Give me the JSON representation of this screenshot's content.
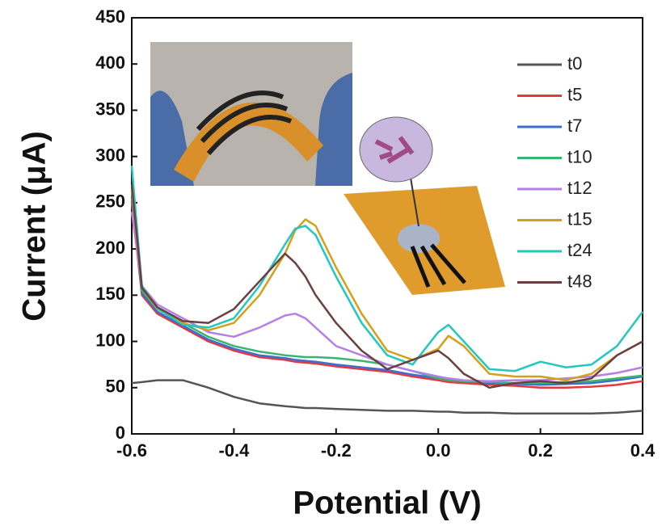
{
  "chart_data": {
    "type": "line",
    "x_label": "Potential (V)",
    "y_label": "Current (μA)",
    "x": [
      -0.6,
      -0.58,
      -0.55,
      -0.5,
      -0.45,
      -0.4,
      -0.35,
      -0.3,
      -0.28,
      -0.26,
      -0.24,
      -0.2,
      -0.15,
      -0.1,
      -0.05,
      0,
      0.02,
      0.05,
      0.1,
      0.15,
      0.2,
      0.25,
      0.3,
      0.35,
      0.4
    ],
    "series": [
      {
        "name": "t0",
        "color": "#555555",
        "values": [
          55,
          56,
          58,
          58,
          50,
          40,
          33,
          30,
          29,
          28,
          28,
          27,
          26,
          25,
          25,
          24,
          24,
          23,
          23,
          22,
          22,
          22,
          22,
          23,
          25
        ]
      },
      {
        "name": "t5",
        "color": "#e8373f",
        "values": [
          250,
          150,
          130,
          115,
          100,
          90,
          83,
          80,
          78,
          77,
          76,
          73,
          70,
          67,
          62,
          58,
          56,
          55,
          53,
          52,
          50,
          50,
          51,
          53,
          57
        ]
      },
      {
        "name": "t7",
        "color": "#3b6fd0",
        "values": [
          255,
          152,
          132,
          117,
          102,
          92,
          85,
          82,
          80,
          79,
          78,
          75,
          72,
          69,
          64,
          60,
          58,
          57,
          55,
          54,
          53,
          54,
          55,
          58,
          62
        ]
      },
      {
        "name": "t10",
        "color": "#3cb371",
        "values": [
          262,
          155,
          135,
          120,
          105,
          95,
          89,
          85,
          84,
          83,
          83,
          82,
          79,
          75,
          68,
          60,
          58,
          57,
          56,
          55,
          55,
          56,
          57,
          60,
          63
        ]
      },
      {
        "name": "t12",
        "color": "#b87ee8",
        "values": [
          240,
          160,
          140,
          125,
          110,
          105,
          115,
          128,
          130,
          125,
          115,
          95,
          85,
          75,
          68,
          62,
          60,
          58,
          57,
          58,
          58,
          60,
          62,
          66,
          72
        ]
      },
      {
        "name": "t15",
        "color": "#d4a017",
        "values": [
          265,
          158,
          135,
          120,
          112,
          120,
          150,
          195,
          220,
          232,
          225,
          180,
          130,
          90,
          80,
          92,
          106,
          95,
          65,
          62,
          62,
          58,
          65,
          85,
          100
        ]
      },
      {
        "name": "t24",
        "color": "#20c8c0",
        "values": [
          290,
          160,
          136,
          118,
          115,
          125,
          160,
          205,
          222,
          225,
          215,
          170,
          120,
          85,
          75,
          110,
          118,
          100,
          70,
          68,
          78,
          72,
          75,
          95,
          132
        ]
      },
      {
        "name": "t48",
        "color": "#6b3f3f",
        "values": [
          270,
          158,
          137,
          122,
          120,
          135,
          165,
          195,
          185,
          170,
          150,
          120,
          90,
          70,
          80,
          90,
          82,
          65,
          50,
          55,
          57,
          55,
          60,
          85,
          100
        ]
      }
    ],
    "xlim": [
      -0.6,
      0.4
    ],
    "xticks": [
      -0.6,
      -0.4,
      -0.2,
      {
        "value": 0,
        "label": "0.0"
      },
      0.2,
      0.4
    ],
    "ylim": [
      0,
      450
    ],
    "yticks": [
      0,
      50,
      100,
      150,
      200,
      250,
      300,
      350,
      400,
      450
    ],
    "legend": "upper right"
  }
}
